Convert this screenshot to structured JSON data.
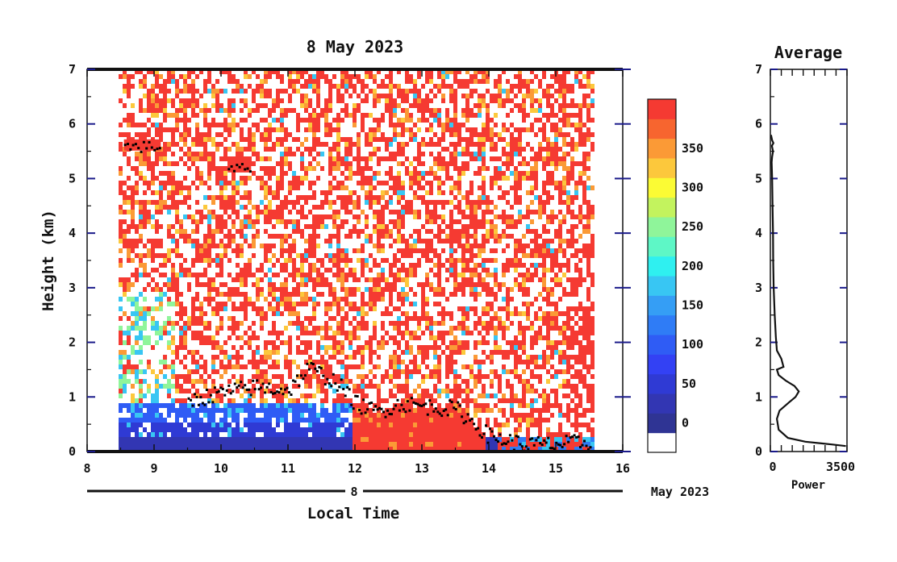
{
  "chart_data": [
    {
      "type": "heatmap",
      "title": "8 May 2023",
      "xlabel": "Local Time",
      "ylabel": "Height (km)",
      "xlim": [
        8,
        16
      ],
      "ylim": [
        0,
        7
      ],
      "x_ticks": [
        "8",
        "9",
        "10",
        "11",
        "12",
        "13",
        "14",
        "15",
        "16"
      ],
      "y_ticks": [
        "0",
        "1",
        "2",
        "3",
        "4",
        "5",
        "6",
        "7"
      ],
      "date_day_label": "8",
      "date_month_label": "May 2023",
      "data_time_range": [
        8.47,
        15.55
      ],
      "colorbar": {
        "ticks": [
          "0",
          "50",
          "100",
          "150",
          "200",
          "250",
          "300",
          "350"
        ],
        "levels": [
          0,
          25,
          50,
          75,
          100,
          125,
          150,
          175,
          200,
          225,
          250,
          275,
          300,
          325,
          350,
          375
        ],
        "colors": [
          "#2f3494",
          "#3236b3",
          "#2f3ad4",
          "#3341f4",
          "#2f5cf5",
          "#2f7cf6",
          "#359ef5",
          "#38c6f3",
          "#2ff0f0",
          "#5ef7c6",
          "#8ff59a",
          "#c3f35e",
          "#fbfb34",
          "#fcc83c",
          "#fb9a36",
          "#f7652f",
          "#f53a32"
        ]
      },
      "layer_top_points": [
        {
          "t": 9.5,
          "h": 0.95
        },
        {
          "t": 10.0,
          "h": 1.1
        },
        {
          "t": 10.5,
          "h": 1.2
        },
        {
          "t": 11.0,
          "h": 1.15
        },
        {
          "t": 11.3,
          "h": 1.55
        },
        {
          "t": 11.7,
          "h": 1.3
        },
        {
          "t": 12.0,
          "h": 0.9
        },
        {
          "t": 12.3,
          "h": 0.75
        },
        {
          "t": 12.7,
          "h": 0.9
        },
        {
          "t": 13.0,
          "h": 0.85
        },
        {
          "t": 13.5,
          "h": 0.8
        },
        {
          "t": 14.0,
          "h": 0.3
        },
        {
          "t": 14.5,
          "h": 0.15
        },
        {
          "t": 15.0,
          "h": 0.15
        },
        {
          "t": 15.5,
          "h": 0.2
        }
      ],
      "elevated_features": [
        {
          "t_start": 8.55,
          "t_end": 9.1,
          "h": 5.6
        },
        {
          "t_start": 10.1,
          "t_end": 10.45,
          "h": 5.2
        }
      ]
    },
    {
      "type": "line",
      "title": "Average",
      "xlabel": "Power",
      "ylabel": "",
      "xlim": [
        0,
        3500
      ],
      "ylim": [
        0,
        7
      ],
      "x_ticks": [
        "0",
        "3500"
      ],
      "y_ticks": [
        "0",
        "1",
        "2",
        "3",
        "4",
        "5",
        "6",
        "7"
      ],
      "x": [
        3450,
        2800,
        1600,
        800,
        380,
        300,
        420,
        850,
        1150,
        1300,
        1100,
        700,
        380,
        300,
        600,
        500,
        300,
        250,
        200,
        150,
        130,
        120,
        100,
        80,
        60,
        80,
        120,
        70,
        140,
        80,
        30
      ],
      "y": [
        0.1,
        0.13,
        0.18,
        0.25,
        0.4,
        0.6,
        0.75,
        0.9,
        1.0,
        1.1,
        1.2,
        1.3,
        1.4,
        1.5,
        1.55,
        1.7,
        1.85,
        2.1,
        2.5,
        3.0,
        3.5,
        4.0,
        4.5,
        5.0,
        5.3,
        5.4,
        5.5,
        5.6,
        5.65,
        5.7,
        5.8
      ]
    }
  ]
}
